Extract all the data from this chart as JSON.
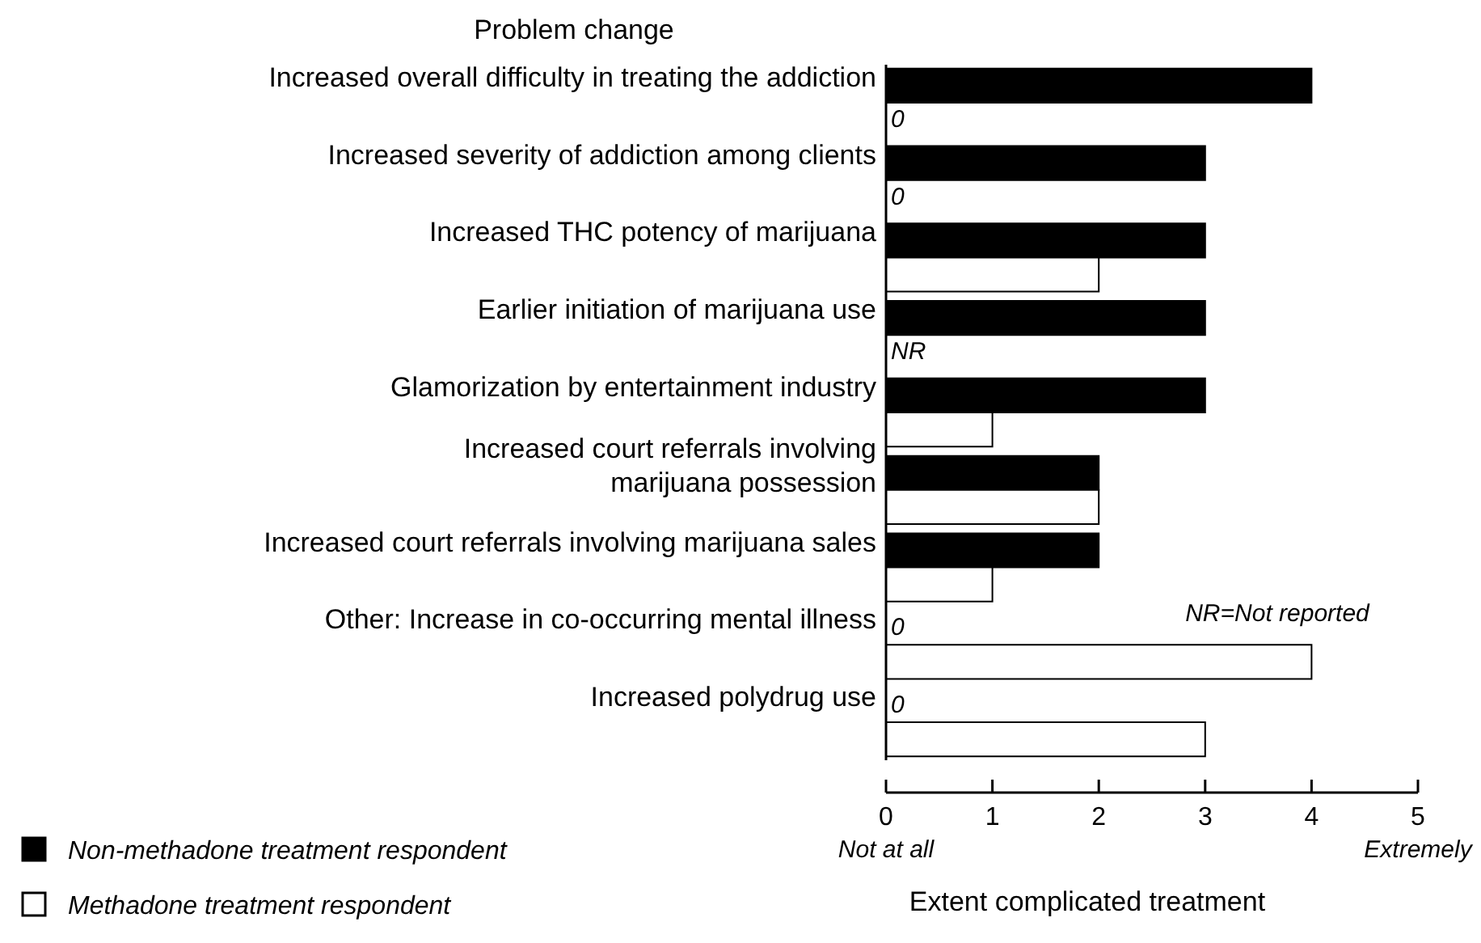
{
  "chart_data": {
    "type": "bar",
    "orientation": "horizontal",
    "ylabel": "Problem change",
    "xlabel": "Extent complicated treatment",
    "categories": [
      "Increased overall difficulty in treating the addiction",
      "Increased severity of addiction among clients",
      "Increased THC potency of marijuana",
      "Earlier initiation of marijuana use",
      "Glamorization by entertainment industry",
      "Increased court referrals involving\nmarijuana possession",
      "Increased court referrals involving marijuana sales",
      "Other: Increase in co-occurring mental illness",
      "Increased polydrug use"
    ],
    "series": [
      {
        "name": "Non-methadone treatment respondent",
        "color": "#000000",
        "values": [
          4,
          3,
          3,
          3,
          3,
          2,
          2,
          0,
          0
        ],
        "value_labels": [
          null,
          null,
          null,
          null,
          null,
          null,
          null,
          "0",
          "0"
        ]
      },
      {
        "name": "Methadone treatment respondent",
        "color": "#ffffff",
        "values": [
          0,
          0,
          2,
          null,
          1,
          2,
          1,
          4,
          3
        ],
        "value_labels": [
          "0",
          "0",
          null,
          "NR",
          null,
          null,
          null,
          null,
          null
        ]
      }
    ],
    "xlim": [
      0,
      5
    ],
    "xticks": [
      0,
      1,
      2,
      3,
      4,
      5
    ],
    "annotations": [
      "Not at all",
      "Extremely",
      "NR=Not reported"
    ],
    "legend": "bottom left",
    "grid": false
  }
}
